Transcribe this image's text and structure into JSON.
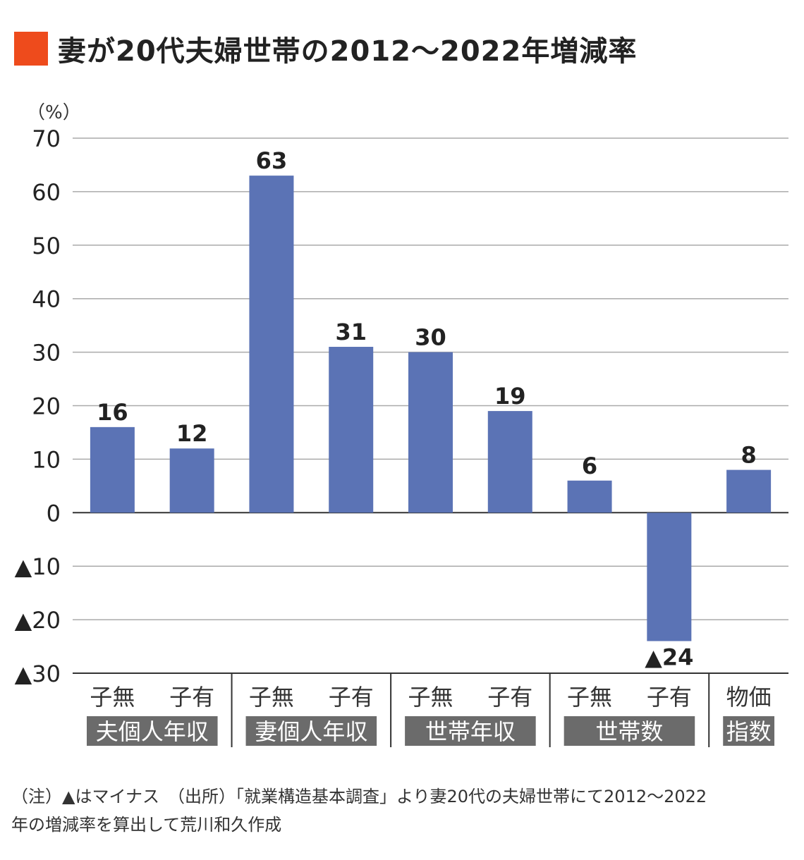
{
  "chart_data": {
    "type": "bar",
    "title": "妻が20代夫婦世帯の2012～2022年増減率",
    "ylabel": "（%）",
    "ylim": [
      -30,
      70
    ],
    "yticks": [
      70,
      60,
      50,
      40,
      30,
      20,
      10,
      0,
      -10,
      -20,
      -30
    ],
    "ytick_labels": [
      "70",
      "60",
      "50",
      "40",
      "30",
      "20",
      "10",
      "0",
      "▲10",
      "▲20",
      "▲30"
    ],
    "grid": true,
    "categories": [
      "子無",
      "子有",
      "子無",
      "子有",
      "子無",
      "子有",
      "子無",
      "子有",
      "物価"
    ],
    "groups": [
      {
        "label": "夫個人年収",
        "span": 2
      },
      {
        "label": "妻個人年収",
        "span": 2
      },
      {
        "label": "世帯年収",
        "span": 2
      },
      {
        "label": "世帯数",
        "span": 2
      },
      {
        "label": "指数",
        "span": 1
      }
    ],
    "values": [
      16,
      12,
      63,
      31,
      30,
      19,
      6,
      -24,
      8
    ],
    "data_labels": [
      "16",
      "12",
      "63",
      "31",
      "30",
      "19",
      "6",
      "▲24",
      "8"
    ],
    "bar_color": "#5b73b5",
    "group_box_color": "#6b6b6b"
  },
  "title_square_color": "#ee4b1c",
  "notes": {
    "line1": "（注）▲はマイナス　（出所）「就業構造基本調査」より妻20代の夫婦世帯にて2012～2022",
    "line2": "年の増減率を算出して荒川和久作成"
  }
}
